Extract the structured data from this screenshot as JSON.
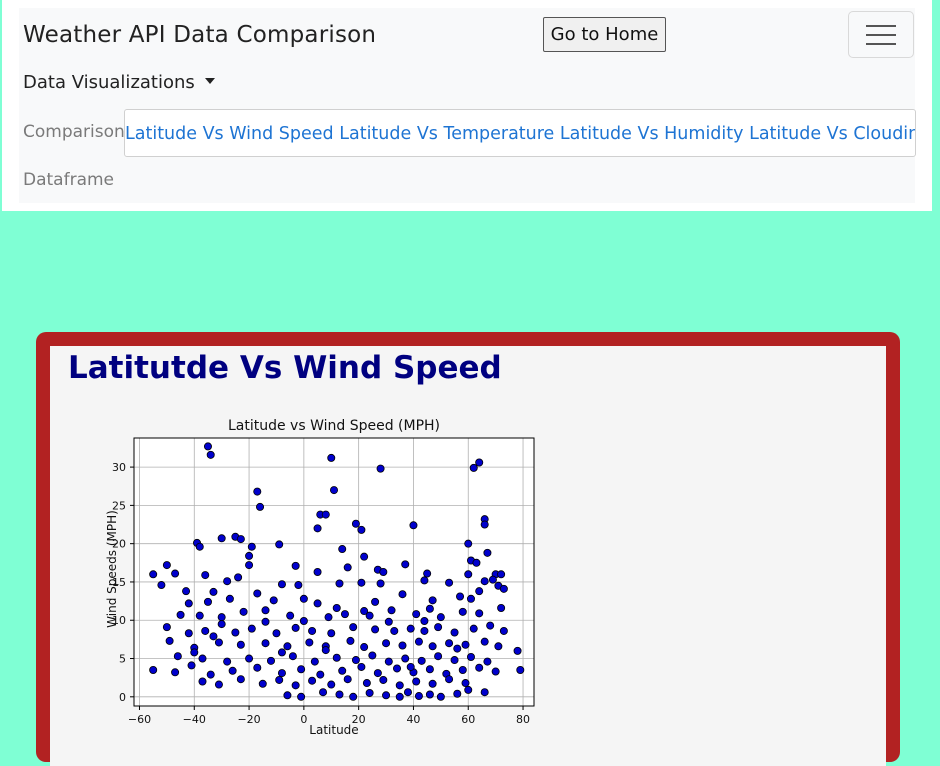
{
  "navbar": {
    "brand": "Weather API Data Comparison",
    "home_button": "Go to Home",
    "dropdown_label": "Data Visualizations",
    "comparison_label": "Comparison",
    "dataframe_label": "Dataframe",
    "menu_items": [
      "Latitude Vs Wind Speed",
      "Latitude Vs Temperature",
      "Latitude Vs Humidity",
      "Latitude Vs Cloudiness"
    ]
  },
  "card": {
    "title": "Latitutde Vs Wind Speed"
  },
  "colors": {
    "page_background": "#7fffd4",
    "card_border": "#b22222",
    "title": "#000080",
    "link": "#1e74d3",
    "point_fill": "#0000cd"
  },
  "chart_data": {
    "type": "scatter",
    "title": "Latitude vs Wind Speed (MPH)",
    "xlabel": "Latitude",
    "ylabel": "Wind Speeds (MPH)",
    "xlim": [
      -62,
      84
    ],
    "ylim": [
      -1.2,
      33.8
    ],
    "xticks": [
      -60,
      -40,
      -20,
      0,
      20,
      40,
      60,
      80
    ],
    "yticks": [
      0,
      5,
      10,
      15,
      20,
      25,
      30
    ],
    "grid": true,
    "points": [
      [
        -35,
        32.7
      ],
      [
        -34,
        31.6
      ],
      [
        10,
        31.2
      ],
      [
        28,
        29.8
      ],
      [
        62,
        29.9
      ],
      [
        64,
        30.6
      ],
      [
        -17,
        26.8
      ],
      [
        11,
        27.0
      ],
      [
        -16,
        24.8
      ],
      [
        6,
        23.8
      ],
      [
        8,
        23.8
      ],
      [
        66,
        23.2
      ],
      [
        5,
        22.0
      ],
      [
        19,
        22.6
      ],
      [
        40,
        22.4
      ],
      [
        66,
        22.5
      ],
      [
        21,
        21.8
      ],
      [
        -25,
        20.9
      ],
      [
        -23,
        20.6
      ],
      [
        -30,
        20.7
      ],
      [
        -39,
        20.1
      ],
      [
        -38,
        19.6
      ],
      [
        -19,
        19.6
      ],
      [
        -9,
        19.9
      ],
      [
        14,
        19.3
      ],
      [
        60,
        20.0
      ],
      [
        -20,
        18.4
      ],
      [
        22,
        18.3
      ],
      [
        -50,
        17.2
      ],
      [
        -47,
        16.1
      ],
      [
        -55,
        16.0
      ],
      [
        -20,
        17.2
      ],
      [
        -3,
        17.1
      ],
      [
        5,
        16.3
      ],
      [
        16,
        16.9
      ],
      [
        27,
        16.6
      ],
      [
        29,
        16.3
      ],
      [
        37,
        17.3
      ],
      [
        45,
        16.1
      ],
      [
        61,
        17.8
      ],
      [
        63,
        17.5
      ],
      [
        67,
        18.8
      ],
      [
        60,
        16.0
      ],
      [
        70,
        16.0
      ],
      [
        72,
        16.0
      ],
      [
        -36,
        15.9
      ],
      [
        -28,
        15.1
      ],
      [
        -24,
        15.6
      ],
      [
        -52,
        14.6
      ],
      [
        -43,
        13.8
      ],
      [
        -33,
        13.7
      ],
      [
        -8,
        14.7
      ],
      [
        -2,
        14.6
      ],
      [
        13,
        14.8
      ],
      [
        21,
        14.9
      ],
      [
        28,
        14.8
      ],
      [
        44,
        15.2
      ],
      [
        53,
        14.9
      ],
      [
        66,
        15.1
      ],
      [
        69,
        15.3
      ],
      [
        71,
        14.5
      ],
      [
        73,
        14.1
      ],
      [
        -42,
        12.2
      ],
      [
        -35,
        12.4
      ],
      [
        -27,
        12.8
      ],
      [
        -17,
        13.5
      ],
      [
        -11,
        12.6
      ],
      [
        5,
        12.2
      ],
      [
        26,
        12.4
      ],
      [
        36,
        13.4
      ],
      [
        47,
        12.6
      ],
      [
        57,
        13.1
      ],
      [
        61,
        12.8
      ],
      [
        -45,
        10.7
      ],
      [
        -38,
        10.6
      ],
      [
        -30,
        10.4
      ],
      [
        -22,
        11.1
      ],
      [
        -14,
        11.3
      ],
      [
        -5,
        10.6
      ],
      [
        0,
        9.9
      ],
      [
        9,
        10.4
      ],
      [
        15,
        10.8
      ],
      [
        24,
        10.6
      ],
      [
        32,
        11.3
      ],
      [
        41,
        10.8
      ],
      [
        50,
        10.4
      ],
      [
        58,
        11.1
      ],
      [
        64,
        10.9
      ],
      [
        72,
        11.6
      ],
      [
        -50,
        9.1
      ],
      [
        -42,
        8.3
      ],
      [
        -36,
        8.6
      ],
      [
        -33,
        7.9
      ],
      [
        -25,
        8.4
      ],
      [
        -19,
        8.9
      ],
      [
        -10,
        8.3
      ],
      [
        -3,
        9.0
      ],
      [
        3,
        8.6
      ],
      [
        10,
        8.3
      ],
      [
        18,
        9.1
      ],
      [
        26,
        8.8
      ],
      [
        33,
        8.6
      ],
      [
        39,
        8.9
      ],
      [
        44,
        8.6
      ],
      [
        49,
        9.1
      ],
      [
        55,
        8.4
      ],
      [
        62,
        8.9
      ],
      [
        68,
        9.3
      ],
      [
        73,
        8.6
      ],
      [
        -49,
        7.3
      ],
      [
        -40,
        6.4
      ],
      [
        -31,
        7.1
      ],
      [
        -23,
        6.8
      ],
      [
        -14,
        7.0
      ],
      [
        -6,
        6.6
      ],
      [
        2,
        7.1
      ],
      [
        8,
        6.6
      ],
      [
        17,
        7.3
      ],
      [
        22,
        6.5
      ],
      [
        30,
        7.0
      ],
      [
        36,
        6.7
      ],
      [
        42,
        7.2
      ],
      [
        47,
        6.6
      ],
      [
        53,
        7.0
      ],
      [
        59,
        6.8
      ],
      [
        66,
        7.2
      ],
      [
        71,
        6.6
      ],
      [
        78,
        6.0
      ],
      [
        -46,
        5.3
      ],
      [
        -37,
        5.0
      ],
      [
        -28,
        4.6
      ],
      [
        -20,
        5.0
      ],
      [
        -12,
        4.7
      ],
      [
        -4,
        5.3
      ],
      [
        4,
        4.6
      ],
      [
        12,
        5.1
      ],
      [
        19,
        4.8
      ],
      [
        25,
        5.4
      ],
      [
        31,
        4.6
      ],
      [
        37,
        5.0
      ],
      [
        43,
        4.7
      ],
      [
        49,
        5.3
      ],
      [
        55,
        4.8
      ],
      [
        61,
        5.2
      ],
      [
        67,
        4.6
      ],
      [
        -55,
        3.5
      ],
      [
        -47,
        3.2
      ],
      [
        -41,
        4.1
      ],
      [
        -34,
        2.9
      ],
      [
        -26,
        3.4
      ],
      [
        -17,
        3.8
      ],
      [
        -8,
        3.1
      ],
      [
        -1,
        3.6
      ],
      [
        6,
        2.9
      ],
      [
        14,
        3.4
      ],
      [
        21,
        3.9
      ],
      [
        27,
        3.1
      ],
      [
        34,
        3.7
      ],
      [
        40,
        3.2
      ],
      [
        46,
        3.6
      ],
      [
        52,
        3.0
      ],
      [
        58,
        3.5
      ],
      [
        64,
        3.8
      ],
      [
        70,
        3.3
      ],
      [
        79,
        3.5
      ],
      [
        -37,
        2.0
      ],
      [
        -31,
        1.6
      ],
      [
        -23,
        2.3
      ],
      [
        -15,
        1.7
      ],
      [
        -9,
        2.2
      ],
      [
        -3,
        1.5
      ],
      [
        3,
        2.1
      ],
      [
        10,
        1.6
      ],
      [
        16,
        2.3
      ],
      [
        23,
        1.8
      ],
      [
        29,
        2.2
      ],
      [
        35,
        1.5
      ],
      [
        41,
        2.0
      ],
      [
        47,
        1.7
      ],
      [
        53,
        2.3
      ],
      [
        59,
        1.8
      ],
      [
        -6,
        0.2
      ],
      [
        -1,
        0.0
      ],
      [
        7,
        0.6
      ],
      [
        13,
        0.3
      ],
      [
        18,
        0.0
      ],
      [
        24,
        0.5
      ],
      [
        30,
        0.2
      ],
      [
        35,
        0.0
      ],
      [
        38,
        0.6
      ],
      [
        42,
        0.1
      ],
      [
        46,
        0.3
      ],
      [
        50,
        0.0
      ],
      [
        56,
        0.4
      ],
      [
        60,
        0.9
      ],
      [
        66,
        0.6
      ],
      [
        -40,
        5.8
      ],
      [
        -30,
        9.5
      ],
      [
        -14,
        9.8
      ],
      [
        0,
        12.8
      ],
      [
        12,
        11.6
      ],
      [
        31,
        9.8
      ],
      [
        46,
        11.5
      ],
      [
        64,
        13.8
      ],
      [
        -8,
        5.8
      ],
      [
        8,
        6.1
      ],
      [
        39,
        3.9
      ],
      [
        56,
        6.3
      ],
      [
        22,
        11.2
      ],
      [
        44,
        9.9
      ]
    ]
  }
}
